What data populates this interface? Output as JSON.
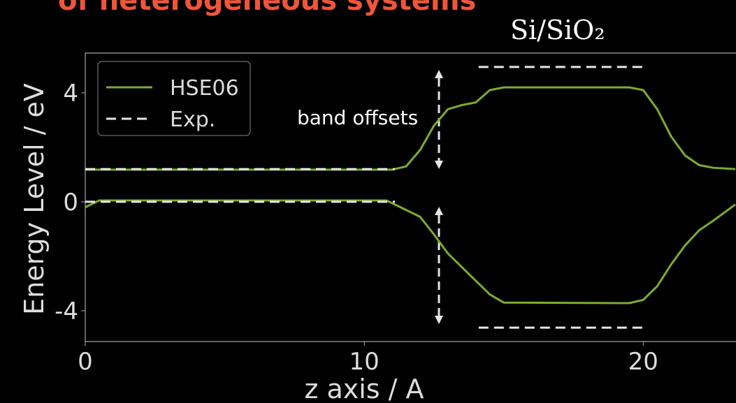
{
  "chart_data": {
    "type": "line",
    "title": "of heterogeneous systems",
    "annotations": [
      "Si/SiO₂",
      "band offsets"
    ],
    "xlabel": "z axis / A",
    "ylabel": "Energy Level / eV",
    "xlim": [
      0,
      23.3
    ],
    "ylim": [
      -5.13,
      5.46
    ],
    "xticks": [
      0,
      10,
      20
    ],
    "yticks": [
      -4,
      0,
      4
    ],
    "legend": "upper left",
    "series": [
      {
        "name": "HSE06",
        "color": "#7cab34",
        "dash": false,
        "x": [
          0,
          11,
          11.5,
          12,
          12.5,
          13,
          13.5,
          14,
          14.5,
          15,
          19.5,
          20,
          20.5,
          21,
          21.5,
          22,
          22.5,
          23.3,
          null,
          0,
          0.5,
          10.8,
          11.3,
          12,
          12.5,
          13,
          13.5,
          14,
          14.5,
          15,
          19.5,
          20,
          20.5,
          21,
          21.5,
          22,
          22.5,
          23.3
        ],
        "values": [
          1.18,
          1.18,
          1.3,
          1.9,
          2.8,
          3.4,
          3.55,
          3.65,
          4.1,
          4.2,
          4.2,
          4.1,
          3.4,
          2.4,
          1.7,
          1.35,
          1.25,
          1.2,
          null,
          -0.2,
          0.05,
          0.05,
          -0.2,
          -0.55,
          -1.2,
          -1.9,
          -2.4,
          -2.9,
          -3.4,
          -3.7,
          -3.72,
          -3.6,
          -3.1,
          -2.3,
          -1.6,
          -1.05,
          -0.7,
          -0.1
        ]
      },
      {
        "name": "Exp.",
        "color": "#e6e6e6",
        "dash": true,
        "x": [
          0,
          11.1,
          null,
          0,
          11.1,
          null,
          14.1,
          20.05,
          null,
          14.1,
          20.05
        ],
        "values": [
          1.2,
          1.2,
          null,
          0,
          0,
          null,
          4.95,
          4.95,
          null,
          -4.62,
          -4.62
        ]
      }
    ]
  }
}
